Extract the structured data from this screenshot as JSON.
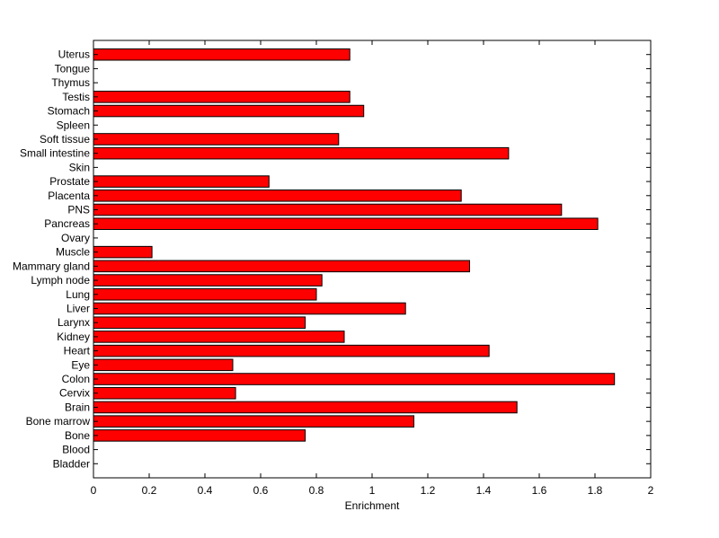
{
  "colors": {
    "bar_fill": "#ff0000",
    "bar_edge": "#000000",
    "axes": "#000000",
    "background": "#ffffff"
  },
  "chart_data": {
    "type": "bar",
    "orientation": "horizontal",
    "title": "",
    "xlabel": "Enrichment",
    "ylabel": "",
    "xlim": [
      0,
      2
    ],
    "x_ticks": [
      "0",
      "0.2",
      "0.4",
      "0.6",
      "0.8",
      "1",
      "1.2",
      "1.4",
      "1.6",
      "1.8",
      "2"
    ],
    "grid": false,
    "categories": [
      "Bladder",
      "Blood",
      "Bone",
      "Bone marrow",
      "Brain",
      "Cervix",
      "Colon",
      "Eye",
      "Heart",
      "Kidney",
      "Larynx",
      "Liver",
      "Lung",
      "Lymph node",
      "Mammary gland",
      "Muscle",
      "Ovary",
      "Pancreas",
      "PNS",
      "Placenta",
      "Prostate",
      "Skin",
      "Small intestine",
      "Soft tissue",
      "Spleen",
      "Stomach",
      "Testis",
      "Thymus",
      "Tongue",
      "Uterus"
    ],
    "values": [
      0,
      0,
      0.76,
      1.15,
      1.52,
      0.51,
      1.87,
      0.5,
      1.42,
      0.9,
      0.76,
      1.12,
      0.8,
      0.82,
      1.35,
      0.21,
      0,
      1.81,
      1.68,
      1.32,
      0.63,
      0,
      1.49,
      0.88,
      0,
      0.97,
      0.92,
      0,
      0,
      0.92
    ]
  }
}
